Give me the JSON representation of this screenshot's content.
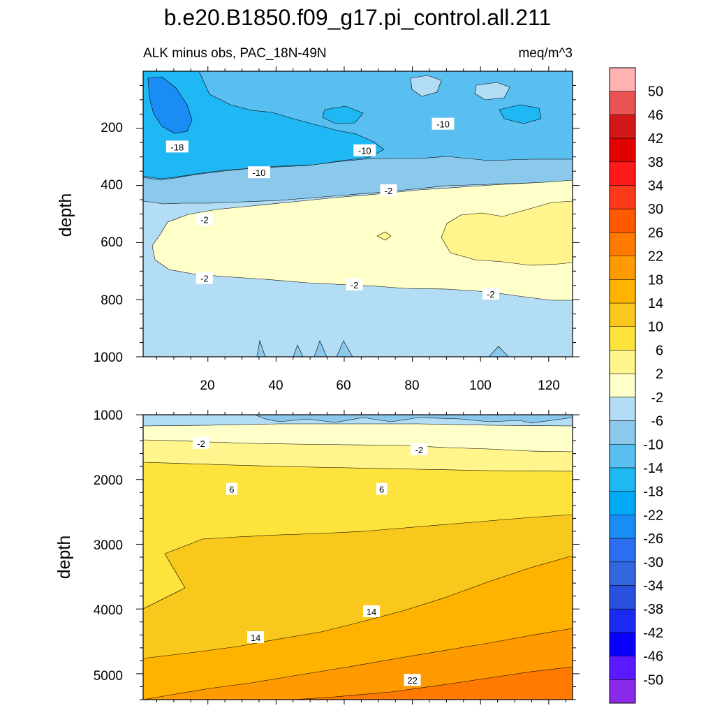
{
  "figure": {
    "title": "b.e20.B1850.f09_g17.pi_control.all.211",
    "subtitle_left": "ALK minus obs, PAC_18N-49N",
    "subtitle_right": "meq/m^3"
  },
  "colorbar": {
    "labels": [
      "50",
      "46",
      "42",
      "38",
      "34",
      "30",
      "26",
      "22",
      "18",
      "14",
      "10",
      "6",
      "2",
      "-2",
      "-6",
      "-10",
      "-14",
      "-18",
      "-22",
      "-26",
      "-30",
      "-34",
      "-38",
      "-42",
      "-46",
      "-50"
    ],
    "colors": [
      "#ffb3b3",
      "#e95353",
      "#d01818",
      "#e30000",
      "#ff1a1a",
      "#ff3a1a",
      "#ff5a00",
      "#ff7a00",
      "#ff9a00",
      "#ffb300",
      "#f9c81c",
      "#fde33c",
      "#fff58c",
      "#ffffc9",
      "#b3dcf5",
      "#8ac8ec",
      "#59bff0",
      "#1fb8f5",
      "#00aaf5",
      "#1a8cf5",
      "#2b6ef0",
      "#3366dd",
      "#2a50e0",
      "#1a2af0",
      "#0a00ff",
      "#5a1aff",
      "#8a2ae8"
    ]
  },
  "chart_data": [
    {
      "type": "contour",
      "panel": "upper",
      "xlim": [
        1,
        127
      ],
      "ylim": [
        1000,
        0
      ],
      "ylabel": "depth",
      "xlabel": "",
      "x_tick_labels": [
        "20",
        "40",
        "60",
        "80",
        "100",
        "120"
      ],
      "y_tick_labels": [
        "200",
        "400",
        "600",
        "800",
        "1000"
      ],
      "contour_labels": [
        {
          "text": "-18",
          "x": 11,
          "depth": 265
        },
        {
          "text": "-10",
          "x": 35,
          "depth": 355
        },
        {
          "text": "-10",
          "x": 66,
          "depth": 278
        },
        {
          "text": "-10",
          "x": 89,
          "depth": 185
        },
        {
          "text": "-2",
          "x": 73,
          "depth": 418
        },
        {
          "text": "-2",
          "x": 19,
          "depth": 520
        },
        {
          "text": "-2",
          "x": 19,
          "depth": 725
        },
        {
          "text": "-2",
          "x": 63,
          "depth": 748
        },
        {
          "text": "-2",
          "x": 103,
          "depth": 780
        }
      ]
    },
    {
      "type": "contour",
      "panel": "lower",
      "xlim": [
        1,
        127
      ],
      "ylim": [
        1000,
        5400
      ],
      "ylabel": "depth",
      "xlabel": "",
      "y_tick_labels": [
        "1000",
        "2000",
        "3000",
        "4000",
        "5000"
      ],
      "contour_labels": [
        {
          "text": "-2",
          "x": 18,
          "depth": 1440
        },
        {
          "text": "-2",
          "x": 82,
          "depth": 1540
        },
        {
          "text": "6",
          "x": 27,
          "depth": 2150
        },
        {
          "text": "6",
          "x": 71,
          "depth": 2150
        },
        {
          "text": "14",
          "x": 68,
          "depth": 4040
        },
        {
          "text": "14",
          "x": 34,
          "depth": 4440
        },
        {
          "text": "22",
          "x": 80,
          "depth": 5100
        }
      ]
    }
  ]
}
